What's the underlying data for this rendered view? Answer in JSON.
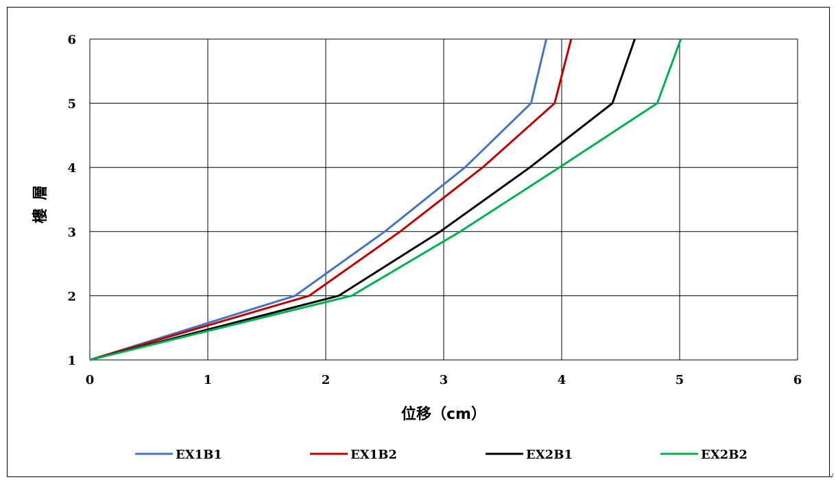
{
  "chart_data": {
    "type": "line",
    "title": "",
    "xlabel": "位移（cm）",
    "ylabel": "樓層",
    "xlim": [
      0,
      6
    ],
    "ylim": [
      1,
      6
    ],
    "x_ticks": [
      "0",
      "1",
      "2",
      "3",
      "4",
      "5",
      "6"
    ],
    "y_ticks": [
      "1",
      "2",
      "3",
      "4",
      "5",
      "6"
    ],
    "grid": true,
    "legend_position": "bottom",
    "y": [
      1,
      2,
      3,
      4,
      5,
      6
    ],
    "series": [
      {
        "name": "EX1B1",
        "color": "#4472C4",
        "x": [
          0,
          1.74,
          2.5,
          3.18,
          3.74,
          3.87
        ]
      },
      {
        "name": "EX1B2",
        "color": "#C00000",
        "x": [
          0,
          1.86,
          2.63,
          3.33,
          3.94,
          4.08
        ]
      },
      {
        "name": "EX2B1",
        "color": "#000000",
        "x": [
          0,
          2.11,
          2.97,
          3.73,
          4.43,
          4.62
        ]
      },
      {
        "name": "EX2B2",
        "color": "#00B050",
        "x": [
          0,
          2.22,
          3.14,
          3.98,
          4.81,
          5.01
        ]
      }
    ]
  },
  "corner_mark": "↲"
}
